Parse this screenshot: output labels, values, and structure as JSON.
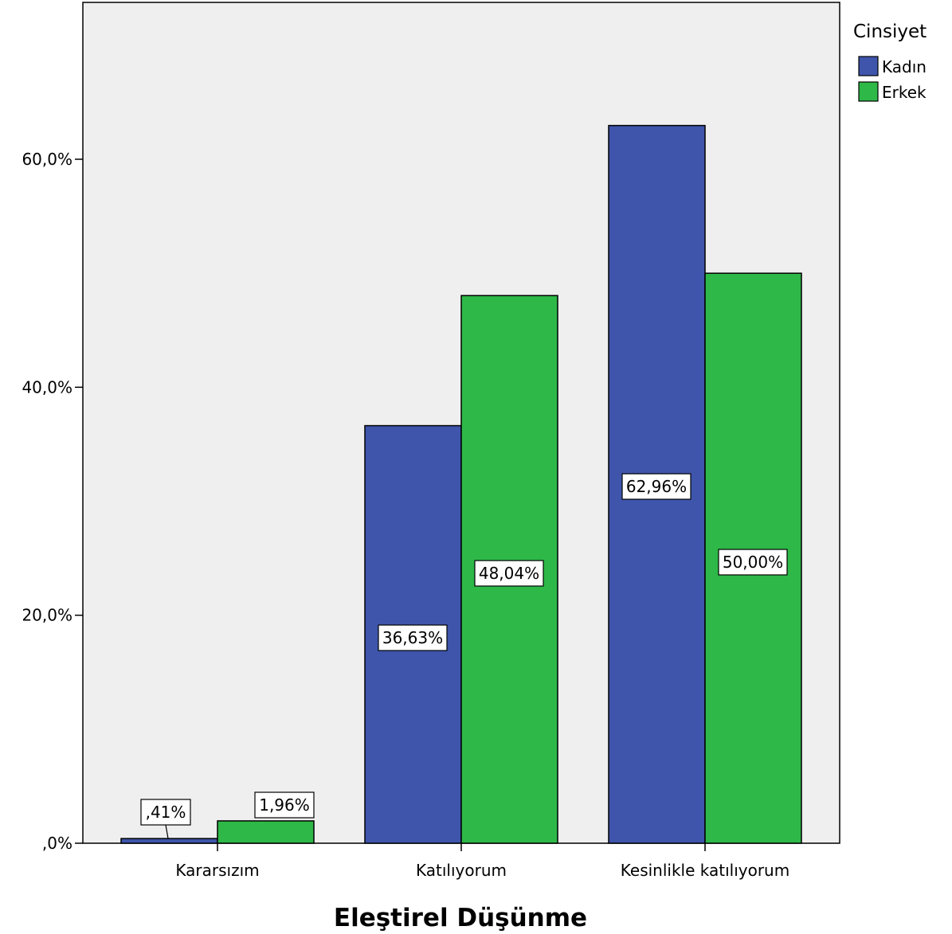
{
  "chart_data": {
    "type": "bar",
    "xlabel": "Eleştirel Düşünme",
    "ylabel": "",
    "ylim": [
      0,
      72
    ],
    "y_ticks": [
      {
        "value": 0,
        "label": ",0%"
      },
      {
        "value": 20,
        "label": "20,0%"
      },
      {
        "value": 40,
        "label": "40,0%"
      },
      {
        "value": 60,
        "label": "60,0%"
      }
    ],
    "categories": [
      "Kararsızım",
      "Katılıyorum",
      "Kesinlikle katılıyorum"
    ],
    "series": [
      {
        "name": "Kadın",
        "color": "#3E55AB",
        "values": [
          0.41,
          36.63,
          62.96
        ],
        "labels": [
          ",41%",
          "36,63%",
          "62,96%"
        ]
      },
      {
        "name": "Erkek",
        "color": "#2EB848",
        "values": [
          1.96,
          48.04,
          50.0
        ],
        "labels": [
          "1,96%",
          "48,04%",
          "50,00%"
        ]
      }
    ],
    "legend": {
      "title": "Cinsiyet",
      "position": "top-right"
    },
    "grid": false,
    "plot_background": "#EFEFEF"
  }
}
